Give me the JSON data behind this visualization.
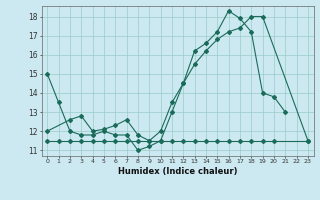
{
  "xlabel": "Humidex (Indice chaleur)",
  "bg_color": "#cce8f0",
  "grid_color": "#99cccc",
  "line_color": "#1a6b5a",
  "xlim": [
    -0.5,
    23.5
  ],
  "ylim": [
    10.7,
    18.55
  ],
  "xticks": [
    0,
    1,
    2,
    3,
    4,
    5,
    6,
    7,
    8,
    9,
    10,
    11,
    12,
    13,
    14,
    15,
    16,
    17,
    18,
    19,
    20,
    21,
    22,
    23
  ],
  "yticks": [
    11,
    12,
    13,
    14,
    15,
    16,
    17,
    18
  ],
  "line_a_x": [
    0,
    1,
    2,
    3,
    4,
    5,
    6,
    7,
    8,
    9,
    10,
    11,
    12,
    13,
    14,
    15,
    16,
    17,
    18,
    19,
    20,
    21
  ],
  "line_a_y": [
    15.0,
    13.5,
    12.0,
    11.8,
    11.8,
    12.0,
    11.8,
    11.8,
    11.0,
    11.2,
    11.5,
    13.0,
    14.5,
    16.2,
    16.6,
    17.2,
    18.3,
    17.9,
    17.2,
    14.0,
    13.8,
    13.0
  ],
  "line_b_x": [
    0,
    2,
    3,
    4,
    5,
    6,
    7,
    8,
    9,
    10,
    11,
    12,
    13,
    14,
    15,
    16,
    17,
    18,
    19,
    23
  ],
  "line_b_y": [
    12.0,
    12.6,
    12.8,
    12.0,
    12.1,
    12.3,
    12.6,
    11.8,
    11.5,
    12.0,
    13.5,
    14.5,
    15.5,
    16.2,
    16.8,
    17.2,
    17.4,
    18.0,
    18.0,
    11.5
  ],
  "line_c_x": [
    0,
    1,
    2,
    3,
    4,
    5,
    6,
    7,
    8,
    9,
    10,
    11,
    12,
    13,
    14,
    15,
    16,
    17,
    18,
    19,
    20,
    23
  ],
  "line_c_y": [
    11.5,
    11.5,
    11.5,
    11.5,
    11.5,
    11.5,
    11.5,
    11.5,
    11.5,
    11.5,
    11.5,
    11.5,
    11.5,
    11.5,
    11.5,
    11.5,
    11.5,
    11.5,
    11.5,
    11.5,
    11.5,
    11.5
  ]
}
